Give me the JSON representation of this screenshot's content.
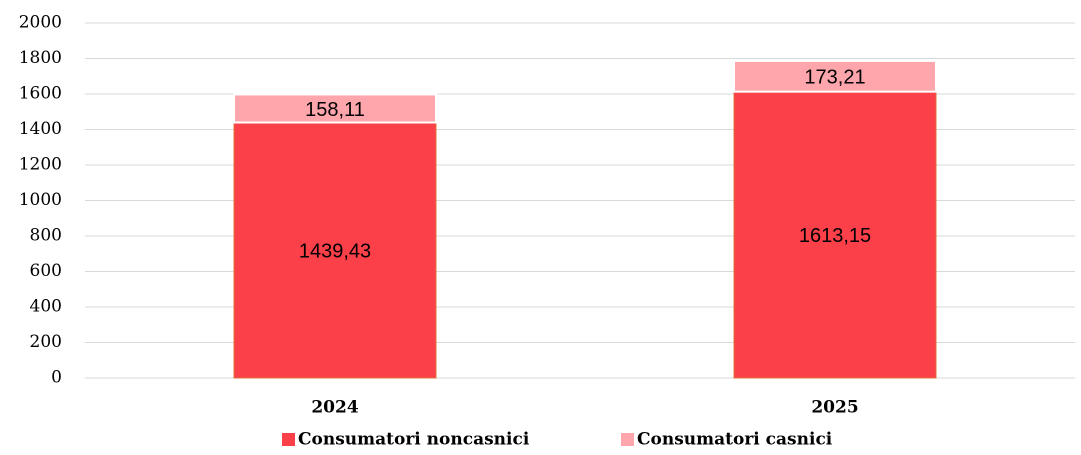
{
  "chart_data": {
    "type": "stacked_bar",
    "categories": [
      "2024",
      "2025"
    ],
    "series": [
      {
        "name": "Consumatori noncasnici",
        "color": "#fc4049",
        "values": [
          1439.43,
          1613.15
        ],
        "value_labels": [
          "1439,43",
          "1613,15"
        ]
      },
      {
        "name": "Consumatori casnici",
        "color": "#ffa6ac",
        "values": [
          158.11,
          173.21
        ],
        "value_labels": [
          "158,11",
          "173,21"
        ]
      }
    ],
    "ylim": [
      0,
      2000
    ],
    "yticks": [
      0,
      200,
      400,
      600,
      800,
      1000,
      1200,
      1400,
      1600,
      1800,
      2000
    ],
    "grid": true,
    "legend": "bottom"
  }
}
